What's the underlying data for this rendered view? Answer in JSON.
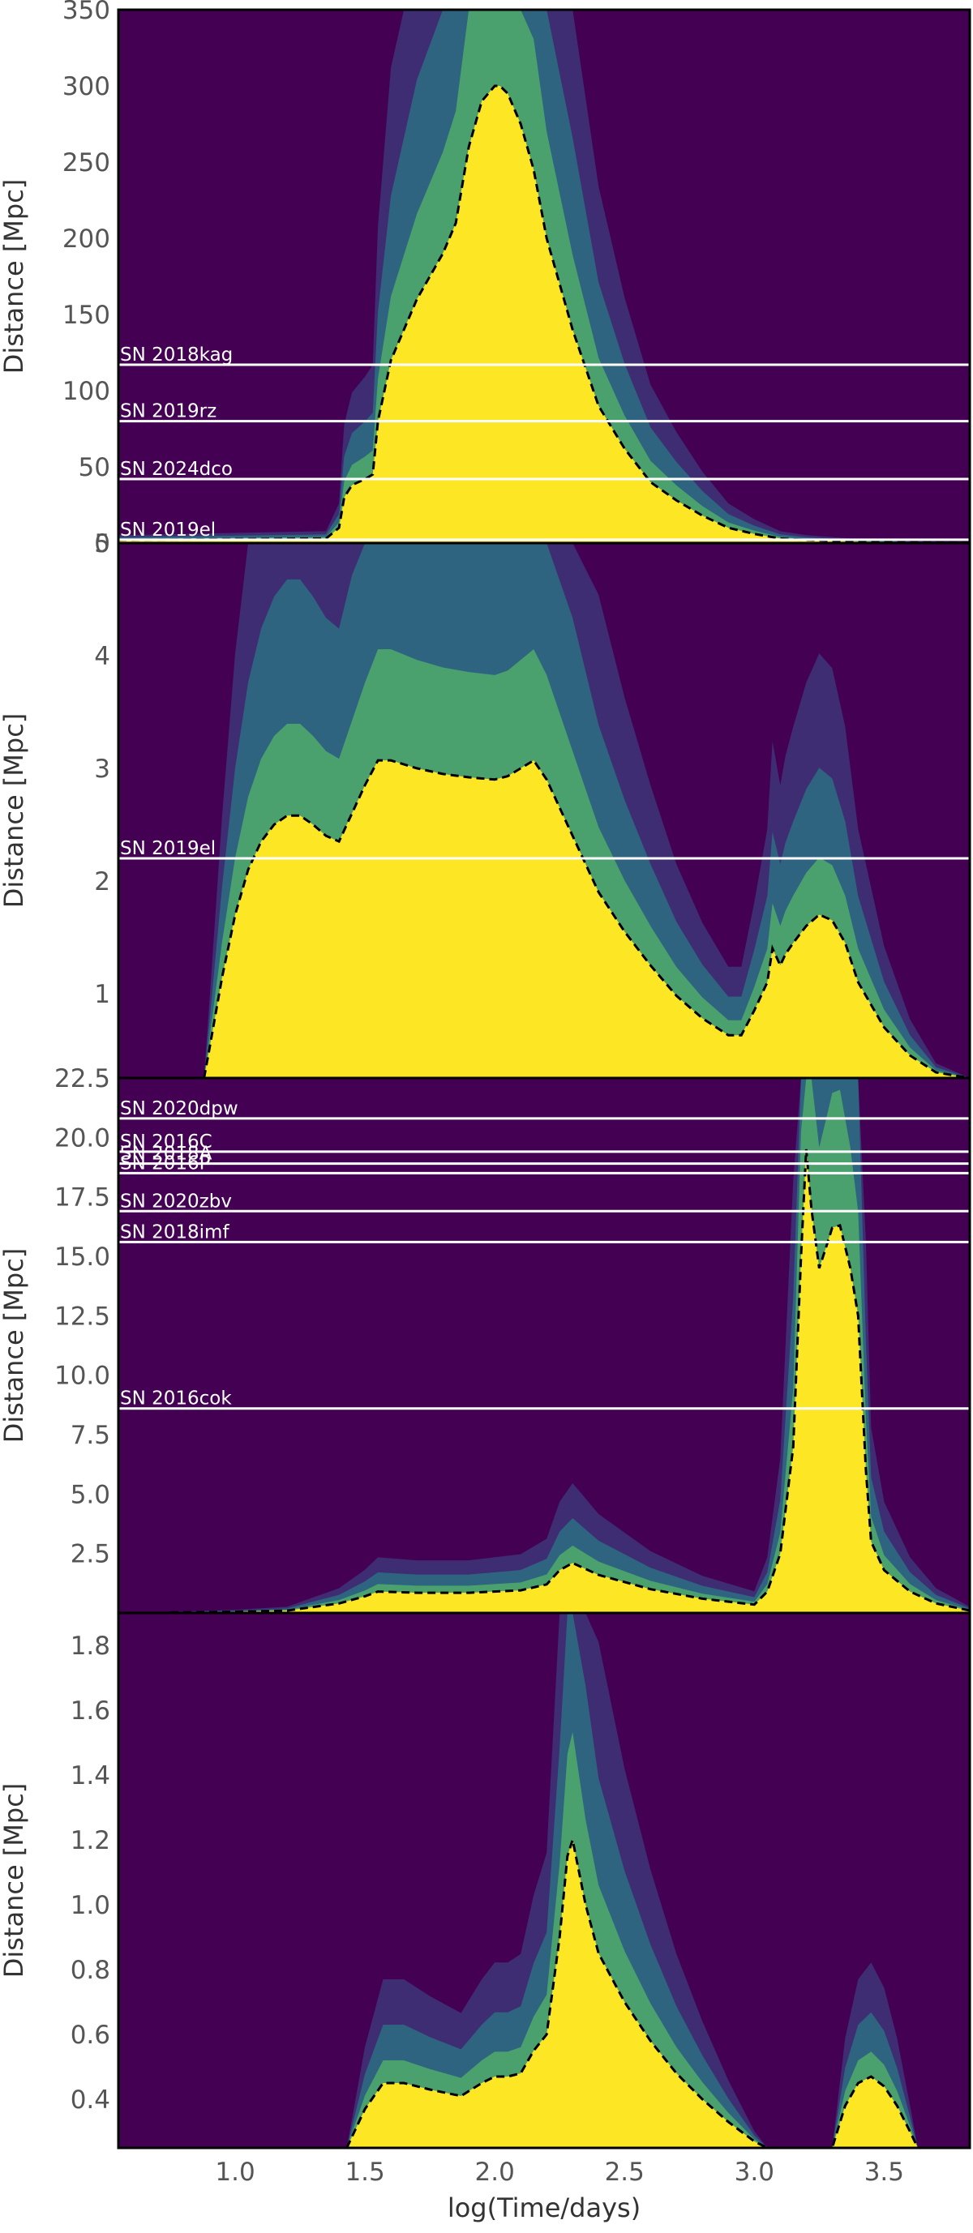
{
  "figure": {
    "xlabel": "log(Time/days)",
    "colormap": [
      "#440154",
      "#3b528b",
      "#21918c",
      "#5ec962",
      "#fde725"
    ]
  },
  "chart_data": [
    {
      "type": "heatmap",
      "ylabel": "Distance [Mpc]",
      "xlim": [
        0.55,
        3.83
      ],
      "ylim": [
        0,
        350
      ],
      "xticks": [
        "1.0",
        "1.5",
        "2.0",
        "2.5",
        "3.0",
        "3.5"
      ],
      "yticks": [
        {
          "value": 50,
          "label": "50"
        },
        {
          "value": 100,
          "label": "100"
        },
        {
          "value": 150,
          "label": "150"
        },
        {
          "value": 200,
          "label": "200"
        },
        {
          "value": 250,
          "label": "250"
        },
        {
          "value": 300,
          "label": "300"
        },
        {
          "value": 350,
          "label": "350"
        }
      ],
      "bottom_label": "0",
      "contour_x": [
        0.55,
        1.35,
        1.4,
        1.42,
        1.45,
        1.5,
        1.53,
        1.55,
        1.6,
        1.65,
        1.7,
        1.8,
        1.85,
        1.9,
        1.95,
        2.0,
        2.02,
        2.05,
        2.1,
        2.15,
        2.2,
        2.3,
        2.4,
        2.5,
        2.6,
        2.7,
        2.8,
        2.9,
        3.0,
        3.1,
        3.2,
        3.4,
        3.6,
        3.83
      ],
      "contour_y": [
        2,
        3,
        10,
        30,
        38,
        42,
        45,
        80,
        120,
        140,
        160,
        190,
        210,
        260,
        290,
        300,
        300,
        295,
        275,
        245,
        200,
        140,
        90,
        62,
        40,
        28,
        18,
        10,
        6,
        3,
        2,
        1,
        0.5,
        0.2
      ],
      "lines": [
        {
          "label": "SN 2018kag",
          "y": 117
        },
        {
          "label": "SN 2019rz",
          "y": 80
        },
        {
          "label": "SN 2024dco",
          "y": 42
        },
        {
          "label": "SN 2019el",
          "y": 2.2
        }
      ]
    },
    {
      "type": "heatmap",
      "ylabel": "Distance [Mpc]",
      "xlim": [
        0.55,
        3.83
      ],
      "ylim": [
        0.25,
        5
      ],
      "xticks": [
        "1.0",
        "1.5",
        "2.0",
        "2.5",
        "3.0",
        "3.5"
      ],
      "yticks": [
        {
          "value": 1,
          "label": "1"
        },
        {
          "value": 2,
          "label": "2"
        },
        {
          "value": 3,
          "label": "3"
        },
        {
          "value": 4,
          "label": "4"
        },
        {
          "value": 5,
          "label": "5"
        }
      ],
      "contour_x": [
        0.88,
        0.9,
        0.95,
        1.0,
        1.05,
        1.1,
        1.15,
        1.2,
        1.25,
        1.3,
        1.35,
        1.4,
        1.45,
        1.5,
        1.55,
        1.6,
        1.7,
        1.8,
        1.9,
        2.0,
        2.05,
        2.1,
        2.15,
        2.2,
        2.3,
        2.4,
        2.5,
        2.6,
        2.7,
        2.8,
        2.9,
        2.95,
        3.0,
        3.05,
        3.07,
        3.1,
        3.12,
        3.15,
        3.2,
        3.25,
        3.3,
        3.35,
        3.4,
        3.5,
        3.6,
        3.7,
        3.83
      ],
      "contour_y": [
        0.25,
        0.5,
        1.15,
        1.7,
        2.1,
        2.35,
        2.5,
        2.58,
        2.58,
        2.5,
        2.4,
        2.35,
        2.6,
        2.85,
        3.07,
        3.07,
        3.0,
        2.95,
        2.92,
        2.9,
        2.93,
        3.0,
        3.07,
        2.9,
        2.4,
        1.9,
        1.55,
        1.25,
        0.98,
        0.78,
        0.63,
        0.63,
        0.85,
        1.1,
        1.4,
        1.25,
        1.35,
        1.45,
        1.6,
        1.7,
        1.65,
        1.45,
        1.1,
        0.7,
        0.45,
        0.3,
        0.2
      ],
      "lines": [
        {
          "label": "SN 2019el",
          "y": 2.2
        }
      ]
    },
    {
      "type": "heatmap",
      "ylabel": "Distance [Mpc]",
      "xlim": [
        0.55,
        3.83
      ],
      "ylim": [
        0,
        22.5
      ],
      "xticks": [
        "1.0",
        "1.5",
        "2.0",
        "2.5",
        "3.0",
        "3.5"
      ],
      "yticks": [
        {
          "value": 2.5,
          "label": "2.5"
        },
        {
          "value": 5,
          "label": "5.0"
        },
        {
          "value": 7.5,
          "label": "7.5"
        },
        {
          "value": 10,
          "label": "10.0"
        },
        {
          "value": 12.5,
          "label": "12.5"
        },
        {
          "value": 15,
          "label": "15.0"
        },
        {
          "value": 17.5,
          "label": "17.5"
        },
        {
          "value": 20,
          "label": "20.0"
        },
        {
          "value": 22.5,
          "label": "22.5"
        }
      ],
      "contour_x": [
        0.75,
        1.0,
        1.2,
        1.4,
        1.5,
        1.55,
        1.7,
        1.9,
        2.1,
        2.2,
        2.25,
        2.3,
        2.4,
        2.6,
        2.8,
        3.0,
        3.05,
        3.1,
        3.15,
        3.18,
        3.2,
        3.22,
        3.25,
        3.28,
        3.3,
        3.33,
        3.37,
        3.4,
        3.43,
        3.45,
        3.5,
        3.6,
        3.7,
        3.83
      ],
      "contour_y": [
        0.02,
        0.05,
        0.1,
        0.4,
        0.7,
        0.9,
        0.85,
        0.85,
        0.95,
        1.2,
        1.8,
        2.1,
        1.6,
        1.0,
        0.6,
        0.35,
        0.9,
        2.5,
        7,
        15,
        19.5,
        17,
        14.5,
        15.5,
        16.2,
        16.3,
        14.5,
        12.5,
        6,
        3,
        1.8,
        0.9,
        0.4,
        0.1
      ],
      "lines": [
        {
          "label": "SN 2020dpw",
          "y": 20.8
        },
        {
          "label": "SN 2016C",
          "y": 19.4
        },
        {
          "label": "SN 2018A",
          "y": 18.9
        },
        {
          "label": "SN 2016P",
          "y": 18.5
        },
        {
          "label": "SN 2020zbv",
          "y": 16.9
        },
        {
          "label": "SN 2018imf",
          "y": 15.6
        },
        {
          "label": "SN 2016cok",
          "y": 8.6
        }
      ]
    },
    {
      "type": "heatmap",
      "ylabel": "Distance [Mpc]",
      "xlim": [
        0.55,
        3.83
      ],
      "ylim": [
        0.25,
        1.9
      ],
      "xticks": [
        "1.0",
        "1.5",
        "2.0",
        "2.5",
        "3.0",
        "3.5"
      ],
      "yticks": [
        {
          "value": 0.4,
          "label": "0.4"
        },
        {
          "value": 0.6,
          "label": "0.6"
        },
        {
          "value": 0.8,
          "label": "0.8"
        },
        {
          "value": 1.0,
          "label": "1.0"
        },
        {
          "value": 1.2,
          "label": "1.2"
        },
        {
          "value": 1.4,
          "label": "1.4"
        },
        {
          "value": 1.6,
          "label": "1.6"
        },
        {
          "value": 1.8,
          "label": "1.8"
        }
      ],
      "contour_x": [
        1.43,
        1.5,
        1.57,
        1.65,
        1.75,
        1.87,
        1.95,
        2.0,
        2.05,
        2.1,
        2.15,
        2.2,
        2.25,
        2.28,
        2.3,
        2.35,
        2.4,
        2.5,
        2.6,
        2.7,
        2.8,
        2.9,
        3.0,
        3.05,
        3.3,
        3.35,
        3.4,
        3.45,
        3.5,
        3.55,
        3.6,
        3.63
      ],
      "contour_y": [
        0.25,
        0.37,
        0.45,
        0.45,
        0.43,
        0.41,
        0.45,
        0.47,
        0.47,
        0.48,
        0.55,
        0.6,
        0.9,
        1.15,
        1.2,
        1.0,
        0.85,
        0.7,
        0.58,
        0.48,
        0.4,
        0.33,
        0.27,
        0.25,
        0.25,
        0.38,
        0.45,
        0.47,
        0.44,
        0.38,
        0.3,
        0.25
      ],
      "lines": []
    }
  ]
}
